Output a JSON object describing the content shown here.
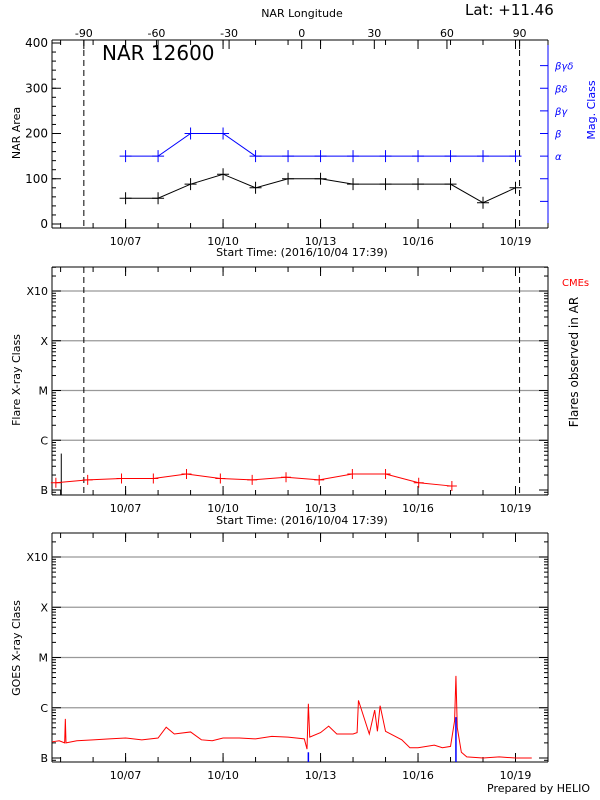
{
  "header": {
    "lat_label": "Lat: +11.46",
    "top_axis_label": "NAR Longitude",
    "footer": "Prepared by HELIO"
  },
  "colors": {
    "area": "#000000",
    "mag_class": "#0000ff",
    "flares": "#ff0000",
    "goes": "#ff0000",
    "goes_secondary": "#0000ff",
    "grid": "#999999",
    "cmes": "#ff0000"
  },
  "chart_data": [
    {
      "type": "line",
      "title": "NAR 12600",
      "xlabel": "Start Time: (2016/10/04 17:39)",
      "ylabel": "NAR Area",
      "y2label": "Mag. Class",
      "xlim": [
        "2016-10-04T17:39",
        "2016-10-20T00:00"
      ],
      "ylim": [
        0,
        400
      ],
      "yticks": [
        0,
        100,
        200,
        300,
        400
      ],
      "xticks": [
        {
          "x": "2016-10-07T00:00",
          "label": "10/07"
        },
        {
          "x": "2016-10-10T00:00",
          "label": "10/10"
        },
        {
          "x": "2016-10-13T00:00",
          "label": "10/13"
        },
        {
          "x": "2016-10-16T00:00",
          "label": "10/16"
        },
        {
          "x": "2016-10-19T00:00",
          "label": "10/19"
        }
      ],
      "top_axis": {
        "label": "NAR Longitude",
        "ticks": [
          -90,
          -60,
          -30,
          0,
          30,
          60,
          90
        ],
        "at_limb": [
          -90,
          90
        ]
      },
      "limb_lines": [
        "2016-10-05T17:10",
        "2016-10-19T03:00"
      ],
      "mag_class_levels": [
        {
          "y": 50,
          "label": ""
        },
        {
          "y": 100,
          "label": ""
        },
        {
          "y": 150,
          "label": "α"
        },
        {
          "y": 200,
          "label": "β"
        },
        {
          "y": 250,
          "label": "βγ"
        },
        {
          "y": 300,
          "label": "βδ"
        },
        {
          "y": 350,
          "label": "βγδ"
        }
      ],
      "x": [
        "2016-10-07T00:00",
        "2016-10-08T00:00",
        "2016-10-09T00:00",
        "2016-10-10T00:00",
        "2016-10-11T00:00",
        "2016-10-12T00:00",
        "2016-10-13T00:00",
        "2016-10-14T00:00",
        "2016-10-15T00:00",
        "2016-10-16T00:00",
        "2016-10-17T00:00",
        "2016-10-18T00:00",
        "2016-10-19T00:00"
      ],
      "series": [
        {
          "name": "NAR Area",
          "values": [
            57,
            57,
            88,
            110,
            80,
            100,
            100,
            88,
            88,
            88,
            88,
            47,
            80
          ]
        },
        {
          "name": "Mag. Class",
          "values": [
            "α",
            "α",
            "β",
            "β",
            "α",
            "α",
            "α",
            "α",
            "α",
            "α",
            "α",
            "α",
            "α"
          ]
        }
      ]
    },
    {
      "type": "line",
      "xlabel": "Start Time: (2016/10/04 17:39)",
      "ylabel": "Flare X-ray Class",
      "y2label": "Flares observed in AR",
      "legend": "CMEs",
      "scale": "log",
      "yticks": [
        {
          "v": 1e-07,
          "label": "B"
        },
        {
          "v": 1e-06,
          "label": "C"
        },
        {
          "v": 1e-05,
          "label": "M"
        },
        {
          "v": 0.0001,
          "label": "X"
        },
        {
          "v": 0.001,
          "label": "X10"
        }
      ],
      "grid": true,
      "limb_lines": [
        "2016-10-05T17:10",
        "2016-10-19T03:00"
      ],
      "event_lines": [
        {
          "x": "2016-10-05T00:30",
          "flux": 5.4e-07
        }
      ],
      "x": [
        "2016-10-04T20:30",
        "2016-10-05T20:00",
        "2016-10-06T21:00",
        "2016-10-07T20:30",
        "2016-10-08T21:00",
        "2016-10-09T22:00",
        "2016-10-10T21:30",
        "2016-10-11T22:30",
        "2016-10-12T23:00",
        "2016-10-13T23:30",
        "2016-10-15T00:00",
        "2016-10-16T00:30",
        "2016-10-17T01:00"
      ],
      "values": [
        1.4e-07,
        1.6e-07,
        1.7e-07,
        1.7e-07,
        2.1e-07,
        1.7e-07,
        1.6e-07,
        1.8e-07,
        1.6e-07,
        2.1e-07,
        2.1e-07,
        1.4e-07,
        1.2e-07
      ]
    },
    {
      "type": "line",
      "ylabel": "GOES X-ray Class",
      "scale": "log",
      "yticks": [
        {
          "v": 1e-07,
          "label": "B"
        },
        {
          "v": 1e-06,
          "label": "C"
        },
        {
          "v": 1e-05,
          "label": "M"
        },
        {
          "v": 0.0001,
          "label": "X"
        },
        {
          "v": 0.001,
          "label": "X10"
        }
      ],
      "grid": true,
      "x": [
        "2016-10-04T17:39",
        "2016-10-04T23:00",
        "2016-10-05T03:00",
        "2016-10-05T03:30",
        "2016-10-05T04:00",
        "2016-10-05T12:00",
        "2016-10-06T00:00",
        "2016-10-06T12:00",
        "2016-10-07T00:00",
        "2016-10-07T12:00",
        "2016-10-08T00:00",
        "2016-10-08T06:00",
        "2016-10-08T12:00",
        "2016-10-09T00:00",
        "2016-10-09T08:00",
        "2016-10-09T16:00",
        "2016-10-10T00:00",
        "2016-10-10T12:00",
        "2016-10-11T00:00",
        "2016-10-11T12:00",
        "2016-10-12T00:00",
        "2016-10-12T12:00",
        "2016-10-12T14:00",
        "2016-10-12T15:00",
        "2016-10-12T16:00",
        "2016-10-13T00:00",
        "2016-10-13T06:00",
        "2016-10-13T12:00",
        "2016-10-14T00:00",
        "2016-10-14T03:00",
        "2016-10-14T04:00",
        "2016-10-14T12:00",
        "2016-10-14T16:00",
        "2016-10-14T18:00",
        "2016-10-14T20:00",
        "2016-10-15T00:00",
        "2016-10-15T12:00",
        "2016-10-15T18:00",
        "2016-10-16T00:00",
        "2016-10-16T12:00",
        "2016-10-16T18:00",
        "2016-10-17T00:00",
        "2016-10-17T03:00",
        "2016-10-17T04:00",
        "2016-10-17T05:00",
        "2016-10-17T08:00",
        "2016-10-17T12:00",
        "2016-10-18T00:00",
        "2016-10-18T12:00",
        "2016-10-19T00:00",
        "2016-10-19T12:00"
      ],
      "values": [
        2.1e-07,
        2.2e-07,
        2e-07,
        6e-07,
        2e-07,
        2.2e-07,
        2.3e-07,
        2.4e-07,
        2.5e-07,
        2.3e-07,
        2.5e-07,
        4.1e-07,
        3e-07,
        3.3e-07,
        2.3e-07,
        2.2e-07,
        2.5e-07,
        2.5e-07,
        2.4e-07,
        2.7e-07,
        2.6e-07,
        2.4e-07,
        1.5e-07,
        1.2e-06,
        2.6e-07,
        3.2e-07,
        4.3e-07,
        3e-07,
        3e-07,
        3.2e-07,
        1.4e-06,
        3e-07,
        9e-07,
        3.4e-07,
        1.1e-06,
        3.4e-07,
        2.3e-07,
        1.6e-07,
        1.6e-07,
        1.8e-07,
        1.6e-07,
        1.7e-07,
        5.5e-07,
        4.3e-06,
        4e-07,
        1.3e-07,
        1.05e-07,
        1e-07,
        1.05e-07,
        1e-07,
        1e-07
      ],
      "secondary_lines": [
        {
          "x": "2016-10-12T15:00",
          "flux": 1.3e-07
        },
        {
          "x": "2016-10-17T04:00",
          "flux": 6.5e-07
        }
      ]
    }
  ]
}
